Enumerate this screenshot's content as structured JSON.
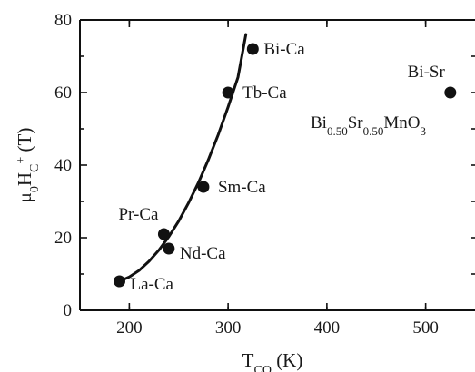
{
  "chart_data": {
    "type": "scatter",
    "xlabel": {
      "main": "T",
      "sub": "CO",
      "unit": " (K)"
    },
    "ylabel": {
      "main": "μ",
      "sub0": "0",
      "mid": "H",
      "sub1": "C",
      "sup": "+",
      "unit": " (T)"
    },
    "xlim": [
      150,
      550
    ],
    "ylim": [
      0,
      80
    ],
    "x_ticks": [
      200,
      300,
      400,
      500
    ],
    "y_ticks": [
      0,
      20,
      40,
      60,
      80
    ],
    "grid": false,
    "points": [
      {
        "label": "La-Ca",
        "x": 190,
        "y": 8
      },
      {
        "label": "Nd-Ca",
        "x": 240,
        "y": 17
      },
      {
        "label": "Pr-Ca",
        "x": 235,
        "y": 21
      },
      {
        "label": "Sm-Ca",
        "x": 275,
        "y": 34
      },
      {
        "label": "Tb-Ca",
        "x": 300,
        "y": 60
      },
      {
        "label": "Bi-Ca",
        "x": 325,
        "y": 72
      },
      {
        "label": "Bi-Sr",
        "x": 525,
        "y": 60
      }
    ],
    "fit_curve": {
      "x": [
        190,
        200,
        210,
        220,
        230,
        240,
        250,
        260,
        270,
        280,
        290,
        300,
        310,
        318
      ],
      "y": [
        8,
        9.2,
        11,
        13.5,
        16.6,
        20.3,
        24.6,
        29.6,
        35.2,
        41.5,
        48.4,
        56,
        64.2,
        76
      ]
    },
    "annotation": {
      "main": "Bi",
      "sub1": "0.50",
      "mid": "Sr",
      "sub2": "0.50",
      "end": "MnO",
      "sub3": "3"
    }
  }
}
